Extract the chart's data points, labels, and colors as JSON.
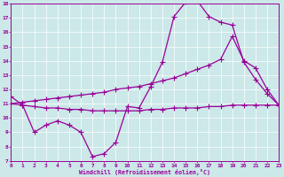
{
  "bg_color": "#cce8e8",
  "line_color": "#990099",
  "markersize": 2.0,
  "xlim": [
    0,
    23
  ],
  "ylim": [
    7,
    18
  ],
  "xticks": [
    0,
    1,
    2,
    3,
    4,
    5,
    6,
    7,
    8,
    9,
    10,
    11,
    12,
    13,
    14,
    15,
    16,
    17,
    18,
    19,
    20,
    21,
    22,
    23
  ],
  "yticks": [
    7,
    8,
    9,
    10,
    11,
    12,
    13,
    14,
    15,
    16,
    17,
    18
  ],
  "xlabel": "Windchill (Refroidissement éolien,°C)",
  "line1": {
    "x": [
      0,
      1,
      2,
      3,
      4,
      5,
      6,
      7,
      8,
      9,
      10,
      11,
      12,
      13,
      14,
      15,
      16,
      17,
      18,
      19,
      20,
      21,
      22,
      23
    ],
    "y": [
      11.5,
      10.9,
      9.0,
      9.5,
      9.8,
      9.5,
      9.0,
      7.3,
      7.5,
      8.3,
      10.8,
      10.7,
      12.2,
      13.9,
      17.1,
      18.1,
      18.2,
      17.1,
      16.7,
      16.5,
      13.9,
      12.7,
      11.7,
      10.9
    ]
  },
  "line2": {
    "x": [
      0,
      1,
      2,
      3,
      4,
      5,
      6,
      7,
      8,
      9,
      10,
      11,
      12,
      13,
      14,
      15,
      16,
      17,
      18,
      19,
      20,
      21,
      22,
      23
    ],
    "y": [
      11.0,
      11.1,
      11.2,
      11.3,
      11.4,
      11.5,
      11.6,
      11.7,
      11.8,
      12.0,
      12.1,
      12.2,
      12.4,
      12.6,
      12.8,
      13.1,
      13.4,
      13.7,
      14.1,
      15.7,
      14.0,
      13.5,
      12.0,
      10.9
    ]
  },
  "line3": {
    "x": [
      0,
      1,
      2,
      3,
      4,
      5,
      6,
      7,
      8,
      9,
      10,
      11,
      12,
      13,
      14,
      15,
      16,
      17,
      18,
      19,
      20,
      21,
      22,
      23
    ],
    "y": [
      11.0,
      10.9,
      10.8,
      10.7,
      10.7,
      10.6,
      10.6,
      10.5,
      10.5,
      10.5,
      10.5,
      10.5,
      10.6,
      10.6,
      10.7,
      10.7,
      10.7,
      10.8,
      10.8,
      10.9,
      10.9,
      10.9,
      10.9,
      10.9
    ]
  }
}
